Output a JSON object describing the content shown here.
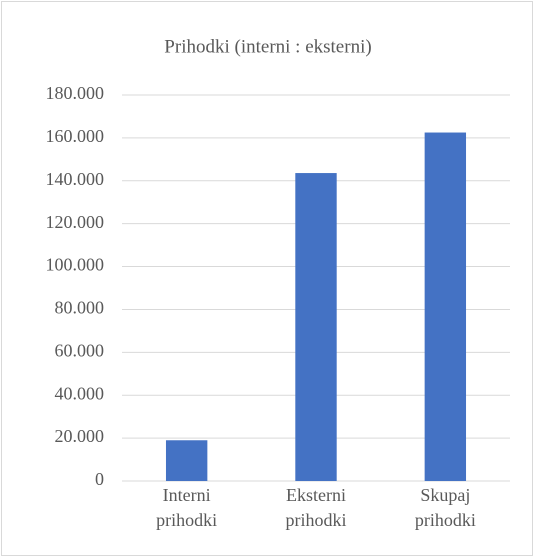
{
  "chart_data": {
    "type": "bar",
    "title": "Prihodki (interni : eksterni)",
    "categories": [
      "Interni prihodki",
      "Eksterni prihodki",
      "Skupaj prihodki"
    ],
    "values": [
      19000,
      143600,
      162500
    ],
    "color": "#4472c4",
    "ylim": [
      0,
      180000
    ],
    "yticks": [
      0,
      {
        "value": 20000,
        "label": "20.000"
      },
      {
        "value": 40000,
        "label": "40.000"
      },
      {
        "value": 60000,
        "label": "60.000"
      },
      {
        "value": 80000,
        "label": "80.000"
      },
      {
        "value": 100000,
        "label": "100.000"
      },
      {
        "value": 120000,
        "label": "120.000"
      },
      {
        "value": 140000,
        "label": "140.000"
      },
      {
        "value": 160000,
        "label": "160.000"
      },
      {
        "value": 180000,
        "label": "180.000"
      }
    ],
    "grid": true
  }
}
